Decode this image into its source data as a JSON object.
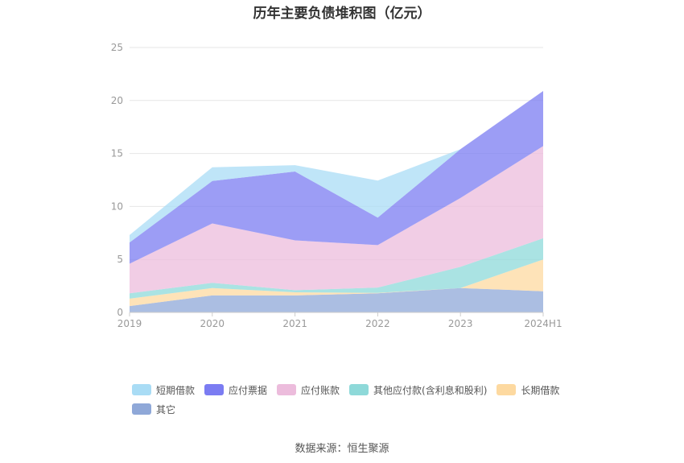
{
  "source_note": "数据来源：恒生聚源",
  "chart_data": {
    "type": "area",
    "stacked": true,
    "title": "历年主要负债堆积图（亿元）",
    "x": [
      "2019",
      "2020",
      "2021",
      "2022",
      "2023",
      "2024H1"
    ],
    "ylim": [
      0,
      25
    ],
    "yticks": [
      0,
      5,
      10,
      15,
      20,
      25
    ],
    "grid": true,
    "legend_position": "bottom",
    "series": [
      {
        "name": "其它",
        "color": "#8fa8d8",
        "values": [
          0.6,
          1.6,
          1.6,
          1.8,
          2.3,
          2.0
        ]
      },
      {
        "name": "长期借款",
        "color": "#fdd9a0",
        "values": [
          0.7,
          0.7,
          0.3,
          0.05,
          0.0,
          3.0
        ]
      },
      {
        "name": "其他应付款(含利息和股利)",
        "color": "#8ed9d9",
        "values": [
          0.5,
          0.5,
          0.2,
          0.5,
          2.0,
          2.0
        ]
      },
      {
        "name": "应付账款",
        "color": "#ecbcdc",
        "values": [
          2.8,
          5.6,
          4.7,
          4.0,
          6.5,
          8.7
        ]
      },
      {
        "name": "应付票据",
        "color": "#7b7cf2",
        "values": [
          2.0,
          4.0,
          6.5,
          2.6,
          4.6,
          5.2
        ]
      },
      {
        "name": "短期借款",
        "color": "#a9dcf5",
        "values": [
          0.7,
          1.3,
          0.6,
          3.5,
          0.0,
          0.0
        ]
      }
    ]
  }
}
